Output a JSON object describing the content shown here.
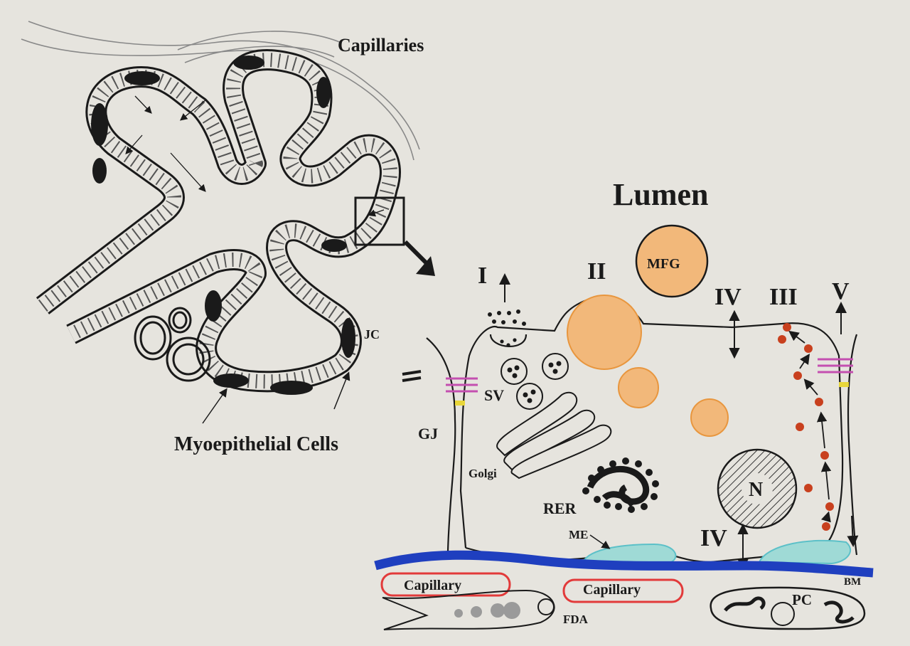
{
  "labels": {
    "capillaries": "Capillaries",
    "lumen": "Lumen",
    "mfg": "MFG",
    "jc": "JC",
    "myoepithelial_cells": "Myoepithelial Cells",
    "gj": "GJ",
    "golgi": "Golgi",
    "sv": "SV",
    "rer": "RER",
    "me": "ME",
    "nucleus": "N",
    "bm": "BM",
    "pc": "PC",
    "fda": "FDA",
    "capillary_left": "Capillary",
    "capillary_right": "Capillary",
    "pathway_1": "I",
    "pathway_2": "II",
    "pathway_3": "III",
    "pathway_4_top": "IV",
    "pathway_4_bottom": "IV",
    "pathway_5": "V"
  },
  "colors": {
    "background": "#e6e4de",
    "lipid_fill": "#f2b87a",
    "lipid_stroke": "#e8963e",
    "basement_membrane": "#1f3fbf",
    "capillary_outline": "#e23a3a",
    "myoepithelial_fill": "#9fdad6",
    "myoepithelial_stroke": "#5cc0c8",
    "junction_pink": "#c44fb0",
    "junction_yellow": "#e8d63a",
    "vesicle_red": "#c8401e",
    "ink": "#1a1a1a"
  }
}
